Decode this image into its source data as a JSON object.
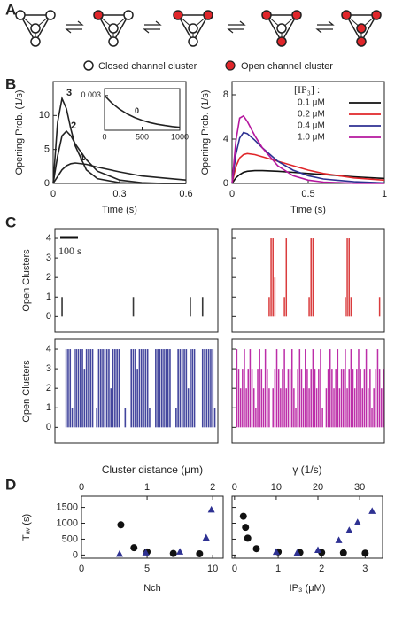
{
  "panel_labels": [
    "A",
    "B",
    "C",
    "D"
  ],
  "panel_A": {
    "closed_label": "Closed channel cluster",
    "open_label": "Open channel cluster"
  },
  "chart_data": [
    {
      "type": "line",
      "xlabel": "Time (s)",
      "ylabel": "Opening Prob. (1/s)",
      "xlim": [
        0,
        0.6
      ],
      "xticks": [
        0,
        0.3,
        0.6
      ],
      "ylim": [
        0,
        15
      ],
      "yticks": [
        0,
        5,
        10
      ],
      "label_curves": true,
      "x": [
        0,
        0.02,
        0.04,
        0.06,
        0.08,
        0.1,
        0.15,
        0.2,
        0.3,
        0.4,
        0.5,
        0.6
      ],
      "series": [
        {
          "name": "1",
          "color": "#222222",
          "values": [
            0,
            1,
            2,
            2.6,
            2.9,
            3,
            2.8,
            2.4,
            1.7,
            1.1,
            0.8,
            0.5
          ]
        },
        {
          "name": "2",
          "color": "#222222",
          "values": [
            0,
            4,
            7,
            7.7,
            7,
            5.8,
            3.5,
            1.8,
            0.5,
            0.1,
            0,
            0
          ]
        },
        {
          "name": "3",
          "color": "#222222",
          "values": [
            0,
            9,
            12.5,
            11,
            8,
            5.5,
            2,
            0.7,
            0.1,
            0,
            0,
            0
          ]
        }
      ]
    },
    {
      "type": "line",
      "inset": true,
      "xlim": [
        0,
        1000
      ],
      "xticks": [
        0,
        500,
        1000
      ],
      "ylim": [
        0,
        0.0036
      ],
      "yticks": [
        0.003
      ],
      "label_curves": true,
      "x": [
        0,
        100,
        200,
        300,
        400,
        500,
        600,
        700,
        800,
        900,
        1000
      ],
      "series": [
        {
          "name": "0",
          "color": "#222222",
          "values": [
            0.003,
            0.00234,
            0.00182,
            0.00142,
            0.0011,
            0.00086,
            0.00067,
            0.00052,
            0.00041,
            0.00032,
            0.00025
          ]
        }
      ]
    },
    {
      "type": "line",
      "xlabel": "Time (s)",
      "ylabel": "Opening Prob. (1/s)",
      "xlim": [
        0,
        1
      ],
      "xticks": [
        0,
        0.5,
        1
      ],
      "ylim": [
        0,
        9.2
      ],
      "yticks": [
        0,
        4,
        8
      ],
      "legend": "upper right",
      "legend_title": "[IP₃] :",
      "x": [
        0,
        0.025,
        0.05,
        0.075,
        0.1,
        0.15,
        0.2,
        0.3,
        0.4,
        0.5,
        0.6,
        0.8,
        1
      ],
      "series": [
        {
          "name": "0.1 μM",
          "color": "#111111",
          "values": [
            0,
            0.5,
            0.8,
            1,
            1.1,
            1.15,
            1.15,
            1.1,
            1,
            0.9,
            0.8,
            0.6,
            0.45
          ]
        },
        {
          "name": "0.2 μM",
          "color": "#e0262a",
          "values": [
            0,
            1.5,
            2.3,
            2.6,
            2.7,
            2.6,
            2.4,
            2,
            1.6,
            1.2,
            0.9,
            0.5,
            0.3
          ]
        },
        {
          "name": "0.4 μM",
          "color": "#2e3192",
          "values": [
            0,
            2.6,
            4.1,
            4.6,
            4.5,
            3.9,
            3.2,
            2,
            1.2,
            0.7,
            0.4,
            0.15,
            0.05
          ]
        },
        {
          "name": "1.0 μM",
          "color": "#b5179e",
          "values": [
            0,
            3.8,
            5.9,
            6.1,
            5.6,
            4.3,
            3.2,
            1.6,
            0.7,
            0.3,
            0.12,
            0.02,
            0
          ]
        }
      ]
    },
    {
      "type": "raster",
      "ylabel": "Open Clusters",
      "annotation": "100 s",
      "ylim": [
        -0.8,
        4.5
      ],
      "yticks": [
        0,
        1,
        2,
        3,
        4
      ],
      "color": "#222222",
      "values": [
        0,
        0,
        0,
        1,
        0,
        0,
        0,
        0,
        0,
        0,
        0,
        0,
        0,
        0,
        0,
        0,
        0,
        0,
        0,
        0,
        0,
        0,
        0,
        0,
        0,
        0,
        0,
        0,
        0,
        0,
        0,
        0,
        0,
        0,
        0,
        0,
        0,
        0,
        1,
        0,
        0,
        0,
        0,
        0,
        0,
        0,
        0,
        0,
        0,
        0,
        0,
        0,
        0,
        0,
        0,
        0,
        0,
        0,
        0,
        0,
        0,
        0,
        0,
        0,
        0,
        0,
        1,
        0,
        0,
        0,
        0,
        0,
        1,
        0,
        0,
        0,
        0,
        0,
        0,
        0
      ]
    },
    {
      "type": "raster",
      "ylim": [
        -0.8,
        4.5
      ],
      "yticks": [
        0,
        1,
        2,
        3,
        4
      ],
      "ytick_labels": false,
      "color": "#d62728",
      "values": [
        0,
        0,
        0,
        0,
        0,
        0,
        0,
        0,
        0,
        0,
        0,
        0,
        0,
        0,
        0,
        0,
        0,
        0,
        0,
        1,
        4,
        4,
        2,
        0,
        0,
        0,
        0,
        1,
        4,
        0,
        0,
        0,
        0,
        0,
        0,
        0,
        0,
        0,
        0,
        0,
        1,
        4,
        4,
        0,
        0,
        0,
        0,
        0,
        0,
        0,
        0,
        0,
        0,
        0,
        0,
        0,
        0,
        0,
        0,
        1,
        4,
        4,
        1,
        0,
        0,
        0,
        0,
        0,
        0,
        0,
        0,
        0,
        0,
        0,
        0,
        0,
        0,
        1,
        0,
        0
      ]
    },
    {
      "type": "raster",
      "ylabel": "Open Clusters",
      "ylim": [
        -0.8,
        4.5
      ],
      "yticks": [
        0,
        1,
        2,
        3,
        4
      ],
      "color": "#2e3192",
      "values": [
        0,
        0,
        0,
        0,
        0,
        4,
        4,
        4,
        1,
        4,
        4,
        4,
        4,
        4,
        3,
        4,
        4,
        4,
        4,
        0,
        1,
        4,
        4,
        4,
        4,
        4,
        4,
        2,
        4,
        4,
        4,
        4,
        0,
        0,
        1,
        0,
        0,
        4,
        4,
        4,
        3,
        4,
        4,
        4,
        4,
        4,
        1,
        0,
        0,
        4,
        4,
        4,
        4,
        4,
        4,
        4,
        4,
        0,
        0,
        1,
        4,
        4,
        4,
        4,
        4,
        2,
        4,
        4,
        4,
        0,
        0,
        0,
        4,
        4,
        4,
        4,
        4,
        4,
        1,
        0
      ]
    },
    {
      "type": "raster",
      "ylim": [
        -0.8,
        4.5
      ],
      "yticks": [
        0,
        1,
        2,
        3,
        4
      ],
      "ytick_labels": false,
      "color": "#b5179e",
      "values": [
        0,
        0,
        4,
        3,
        2,
        3,
        4,
        2,
        3,
        4,
        3,
        2,
        1,
        3,
        4,
        3,
        2,
        4,
        3,
        2,
        0,
        2,
        3,
        4,
        3,
        2,
        3,
        4,
        2,
        3,
        3,
        4,
        2,
        1,
        3,
        4,
        3,
        2,
        4,
        3,
        2,
        3,
        4,
        3,
        2,
        3,
        4,
        1,
        0,
        2,
        3,
        4,
        3,
        2,
        3,
        4,
        2,
        3,
        3,
        4,
        2,
        3,
        4,
        3,
        2,
        3,
        4,
        3,
        2,
        3,
        4,
        2,
        3,
        1,
        2,
        3,
        4,
        3,
        2,
        3
      ]
    },
    {
      "type": "scatter",
      "xlabel": "Nch",
      "ylabel": "Tₐᵥ (s)",
      "x2label": "Cluster distance (μm)",
      "x2_color": "#2e3192",
      "xlim": [
        0,
        10.8
      ],
      "xticks": [
        0,
        5,
        10
      ],
      "x2lim": [
        0,
        2.16
      ],
      "x2ticks": [
        0,
        1,
        2
      ],
      "ylim": [
        -100,
        1850
      ],
      "yticks": [
        0,
        500,
        1000,
        1500
      ],
      "series": [
        {
          "color": "#111111",
          "marker": "circle",
          "x": [
            3,
            4,
            5,
            7,
            9
          ],
          "values": [
            950,
            230,
            100,
            50,
            40
          ]
        },
        {
          "color": "#2e3192",
          "marker": "triangle",
          "axis": "x2",
          "x": [
            0.58,
            0.98,
            1.5,
            1.9,
            1.98
          ],
          "values": [
            30,
            70,
            100,
            540,
            1420
          ]
        }
      ]
    },
    {
      "type": "scatter",
      "xlabel": "IP₃ (μM)",
      "x2label": "γ (1/s)",
      "x2_color": "#2e3192",
      "ytick_labels": false,
      "xlim": [
        -0.06,
        3.4
      ],
      "xticks": [
        0,
        1,
        2,
        3
      ],
      "x2lim": [
        -0.6,
        35.5
      ],
      "x2ticks": [
        0,
        10,
        20,
        30
      ],
      "ylim": [
        -100,
        1850
      ],
      "yticks": [
        0,
        500,
        1000,
        1500
      ],
      "series": [
        {
          "color": "#111111",
          "marker": "circle",
          "x": [
            0.2,
            0.25,
            0.3,
            0.5,
            1,
            1.5,
            2,
            2.5,
            3
          ],
          "values": [
            1220,
            870,
            530,
            200,
            100,
            80,
            80,
            70,
            60
          ]
        },
        {
          "color": "#2e3192",
          "marker": "triangle",
          "axis": "x2",
          "x": [
            10,
            15,
            20,
            25,
            27.5,
            29.5,
            33
          ],
          "values": [
            90,
            60,
            150,
            460,
            770,
            1020,
            1380
          ]
        }
      ]
    }
  ]
}
